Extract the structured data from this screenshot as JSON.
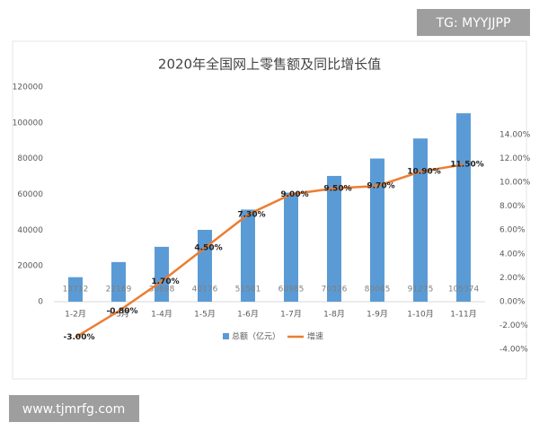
{
  "chart_data": {
    "type": "bar-line",
    "title": "2020年全国网上零售额及同比增长值",
    "categories": [
      "1-2月",
      "1-3月",
      "1-4月",
      "1-5月",
      "1-6月",
      "1-7月",
      "1-8月",
      "1-9月",
      "1-10月",
      "1-11月"
    ],
    "series": [
      {
        "name": "总额（亿元）",
        "type": "bar",
        "color": "#5b9bd5",
        "values": [
          13712,
          22169,
          30698,
          40176,
          51501,
          60985,
          70326,
          80065,
          91275,
          105374
        ]
      },
      {
        "name": "增速",
        "type": "line",
        "axis": "y2",
        "color": "#ed7d31",
        "values": [
          -3,
          -0.8,
          1.7,
          4.5,
          7.3,
          9,
          9.5,
          9.7,
          10.9,
          11.5
        ],
        "value_labels": [
          "-3.00%",
          "-0.80%",
          "1.70%",
          "4.50%",
          "7.30%",
          "9.00%",
          "9.50%",
          "9.70%",
          "10.90%",
          "11.50%"
        ]
      }
    ],
    "ylim": [
      0,
      120000
    ],
    "yticks": [
      0,
      20000,
      40000,
      60000,
      80000,
      100000,
      120000
    ],
    "y2lim": [
      -4,
      14
    ],
    "y2ticks": [
      {
        "value": -4,
        "label": "-4.00%"
      },
      {
        "value": -2,
        "label": "-2.00%"
      },
      {
        "value": 0,
        "label": "0.00%"
      },
      {
        "value": 2,
        "label": "2.00%"
      },
      {
        "value": 4,
        "label": "4.00%"
      },
      {
        "value": 6,
        "label": "6.00%"
      },
      {
        "value": 8,
        "label": "8.00%"
      },
      {
        "value": 10,
        "label": "10.00%"
      },
      {
        "value": 12,
        "label": "12.00%"
      },
      {
        "value": 14,
        "label": "14.00%"
      }
    ],
    "grid": false,
    "legend": "bottom"
  },
  "watermarks": [
    "TG: MYYJJPP",
    "www.tjmrfg.com"
  ]
}
